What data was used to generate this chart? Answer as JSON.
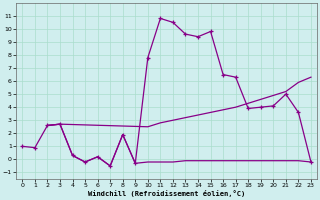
{
  "xlabel": "Windchill (Refroidissement éolien,°C)",
  "background_color": "#d0eeee",
  "grid_color": "#aaddcc",
  "line_color": "#880088",
  "xlim": [
    -0.5,
    23.5
  ],
  "ylim": [
    -1.5,
    12.0
  ],
  "yticks": [
    -1,
    0,
    1,
    2,
    3,
    4,
    5,
    6,
    7,
    8,
    9,
    10,
    11
  ],
  "xticks": [
    0,
    1,
    2,
    3,
    4,
    5,
    6,
    7,
    8,
    9,
    10,
    11,
    12,
    13,
    14,
    15,
    16,
    17,
    18,
    19,
    20,
    21,
    22,
    23
  ],
  "line1_x": [
    0,
    1,
    2,
    3,
    4,
    5,
    6,
    7,
    8,
    9,
    10,
    11,
    12,
    13,
    14,
    15,
    16,
    17,
    18,
    19,
    20,
    21,
    22,
    23
  ],
  "line1_y": [
    1.0,
    0.9,
    2.6,
    2.7,
    0.3,
    -0.2,
    0.2,
    -0.5,
    1.9,
    -0.3,
    7.8,
    10.8,
    10.5,
    9.6,
    9.4,
    9.8,
    6.5,
    6.3,
    3.9,
    4.0,
    4.1,
    5.0,
    3.6,
    -0.2
  ],
  "line2_x": [
    2,
    3,
    10,
    11,
    12,
    13,
    14,
    15,
    16,
    17,
    18,
    19,
    20,
    21,
    22,
    23
  ],
  "line2_y": [
    2.6,
    2.7,
    2.5,
    2.8,
    3.0,
    3.2,
    3.4,
    3.6,
    3.8,
    4.0,
    4.3,
    4.6,
    4.9,
    5.2,
    5.9,
    6.3
  ],
  "line3_x": [
    2,
    3,
    4,
    5,
    6,
    7,
    8,
    9,
    10,
    11,
    12,
    13,
    14,
    15,
    16,
    17,
    18,
    19,
    20,
    21,
    22,
    23
  ],
  "line3_y": [
    2.6,
    2.7,
    0.3,
    -0.2,
    0.2,
    -0.5,
    1.9,
    -0.3,
    -0.2,
    -0.2,
    -0.2,
    -0.1,
    -0.1,
    -0.1,
    -0.1,
    -0.1,
    -0.1,
    -0.1,
    -0.1,
    -0.1,
    -0.1,
    -0.2
  ]
}
